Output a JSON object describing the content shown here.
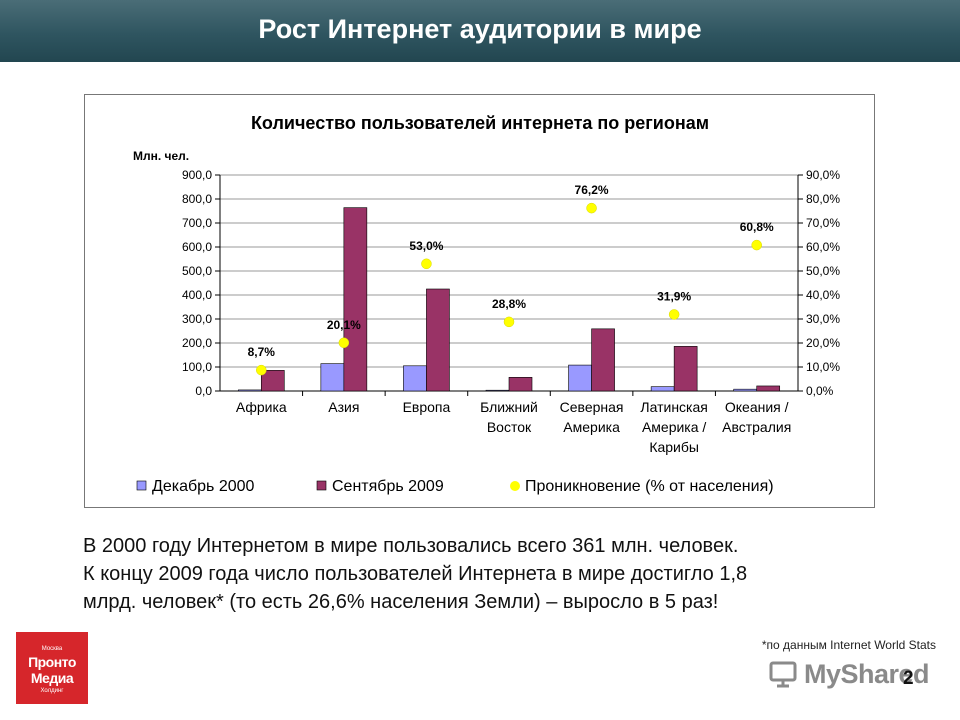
{
  "header": {
    "title": "Рост Интернет аудитории в мире"
  },
  "chart_data": {
    "type": "bar",
    "title": "Количество пользователей интернета по регионам",
    "ylabel": "Млн. чел.",
    "categories": [
      [
        "Африка"
      ],
      [
        "Азия"
      ],
      [
        "Европа"
      ],
      [
        "Ближний",
        "Восток"
      ],
      [
        "Северная",
        "Америка"
      ],
      [
        "Латинская",
        "Америка /",
        "Карибы"
      ],
      [
        "Океания /",
        "Австралия"
      ]
    ],
    "ylim": [
      0,
      900
    ],
    "y2lim": [
      0,
      90
    ],
    "yticks": [
      "0,0",
      "100,0",
      "200,0",
      "300,0",
      "400,0",
      "500,0",
      "600,0",
      "700,0",
      "800,0",
      "900,0"
    ],
    "y2ticks": [
      "0,0%",
      "10,0%",
      "20,0%",
      "30,0%",
      "40,0%",
      "50,0%",
      "60,0%",
      "70,0%",
      "80,0%",
      "90,0%"
    ],
    "grid": true,
    "legend_position": "bottom",
    "series": [
      {
        "name": "Декабрь 2000",
        "kind": "bar",
        "axis": "left",
        "color": "#9999ff",
        "values": [
          4.5,
          114,
          105,
          3.3,
          108,
          18,
          7.6
        ]
      },
      {
        "name": "Сентябрь 2009",
        "kind": "bar",
        "axis": "left",
        "color": "#993366",
        "values": [
          86,
          764,
          425,
          57,
          259,
          186,
          21
        ]
      },
      {
        "name": "Проникновение (% от населения)",
        "kind": "point",
        "axis": "right",
        "color": "#ffff00",
        "values": [
          8.7,
          20.1,
          53.0,
          28.8,
          76.2,
          31.9,
          60.8
        ],
        "labels": [
          "8,7%",
          "20,1%",
          "53,0%",
          "28,8%",
          "76,2%",
          "31,9%",
          "60,8%"
        ]
      }
    ]
  },
  "body": {
    "line1": "В 2000 году Интернетом в мире пользовались всего 361 млн. человек.",
    "line2": "К концу 2009 года число пользователей Интернета в мире достигло 1,8",
    "line3": "млрд. человек* (то есть 26,6% населения Земли) – выросло в 5 раз!"
  },
  "footnote": "*по данным Internet World Stats",
  "logo": {
    "top": "Москва",
    "line1": "Пронто",
    "line2": "Медиа",
    "bottom": "Холдинг"
  },
  "watermark": "MyShared",
  "page_number": "2"
}
